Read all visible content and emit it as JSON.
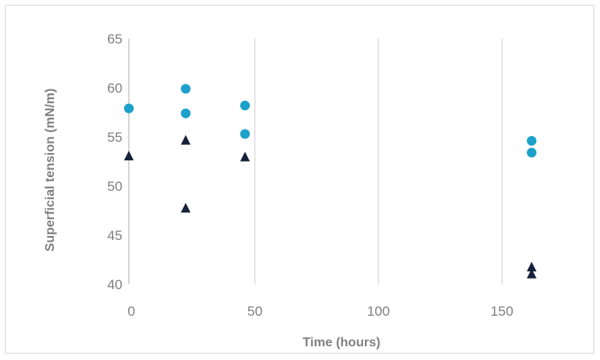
{
  "chart_data": {
    "type": "scatter",
    "title": "",
    "xlabel": "Time (hours)",
    "ylabel": "Superficial tension (mN/m)",
    "xlim": [
      -1,
      175
    ],
    "ylim": [
      40,
      65
    ],
    "x_ticks": [
      0,
      50,
      100,
      150
    ],
    "y_ticks": [
      40,
      45,
      50,
      55,
      60,
      65
    ],
    "grid": "vertical",
    "series": [
      {
        "marker": "circle",
        "color": "#1ba1cb",
        "points": [
          {
            "x": -1,
            "y": 57.9
          },
          {
            "x": 22,
            "y": 59.9
          },
          {
            "x": 22,
            "y": 57.4
          },
          {
            "x": 46,
            "y": 58.2
          },
          {
            "x": 46,
            "y": 55.3
          },
          {
            "x": 162,
            "y": 54.6
          },
          {
            "x": 162,
            "y": 53.4
          }
        ]
      },
      {
        "marker": "triangle",
        "color": "#16213a",
        "points": [
          {
            "x": -1,
            "y": 53.1
          },
          {
            "x": 22,
            "y": 54.7
          },
          {
            "x": 22,
            "y": 47.8
          },
          {
            "x": 46,
            "y": 53.0
          },
          {
            "x": 162,
            "y": 41.8
          },
          {
            "x": 162,
            "y": 41.1
          }
        ]
      }
    ]
  }
}
